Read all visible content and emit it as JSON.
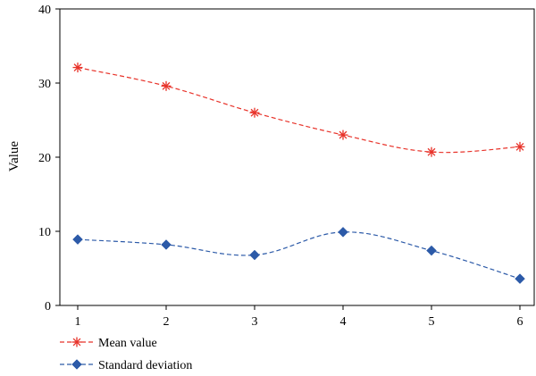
{
  "chart_data": {
    "type": "line",
    "x": [
      1,
      2,
      3,
      4,
      5,
      6
    ],
    "series": [
      {
        "name": "Mean value",
        "values": [
          32.1,
          29.6,
          26.0,
          23.0,
          20.7,
          21.4
        ],
        "color": "#e8332a",
        "marker": "asterisk",
        "line_style": "dashed"
      },
      {
        "name": "Standard deviation",
        "values": [
          8.9,
          8.2,
          6.8,
          9.9,
          7.4,
          3.6
        ],
        "color": "#2c5aa8",
        "marker": "diamond",
        "line_style": "dashed"
      }
    ],
    "xlabel": "",
    "ylabel": "Value",
    "xlim": [
      1,
      6
    ],
    "ylim": [
      0,
      40
    ],
    "xticks": [
      "1",
      "2",
      "3",
      "4",
      "5",
      "6"
    ],
    "yticks": [
      "0",
      "10",
      "20",
      "30",
      "40"
    ],
    "grid": false,
    "legend_position": "bottom-left"
  }
}
